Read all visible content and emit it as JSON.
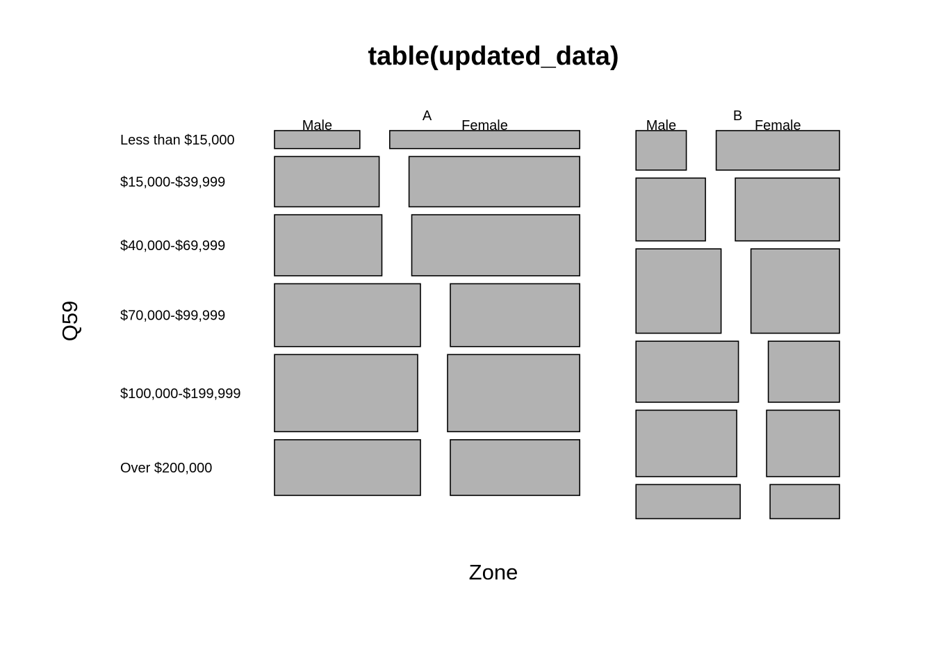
{
  "chart_data": {
    "type": "mosaic",
    "title": "table(updated_data)",
    "xlabel": "Zone",
    "ylabel": "Q59",
    "zones": [
      "A",
      "B"
    ],
    "genders": [
      "Male",
      "Female"
    ],
    "income_levels": [
      "Less than $15,000",
      "$15,000-$39,999",
      "$40,000-$69,999",
      "$70,000-$99,999",
      "$100,000-$199,999",
      "Over $200,000"
    ],
    "zone_share": [
      0.6,
      0.4
    ],
    "income_share_within_zone": {
      "A": [
        0.05,
        0.14,
        0.17,
        0.175,
        0.215,
        0.155
      ],
      "B": [
        0.11,
        0.175,
        0.235,
        0.17,
        0.185,
        0.095
      ]
    },
    "male_share_within_zone_income": {
      "A": [
        0.31,
        0.38,
        0.39,
        0.53,
        0.52,
        0.53
      ],
      "B": [
        0.29,
        0.4,
        0.49,
        0.59,
        0.58,
        0.6
      ]
    },
    "fill_color": "#b2b2b2",
    "stroke_color": "#000000"
  }
}
